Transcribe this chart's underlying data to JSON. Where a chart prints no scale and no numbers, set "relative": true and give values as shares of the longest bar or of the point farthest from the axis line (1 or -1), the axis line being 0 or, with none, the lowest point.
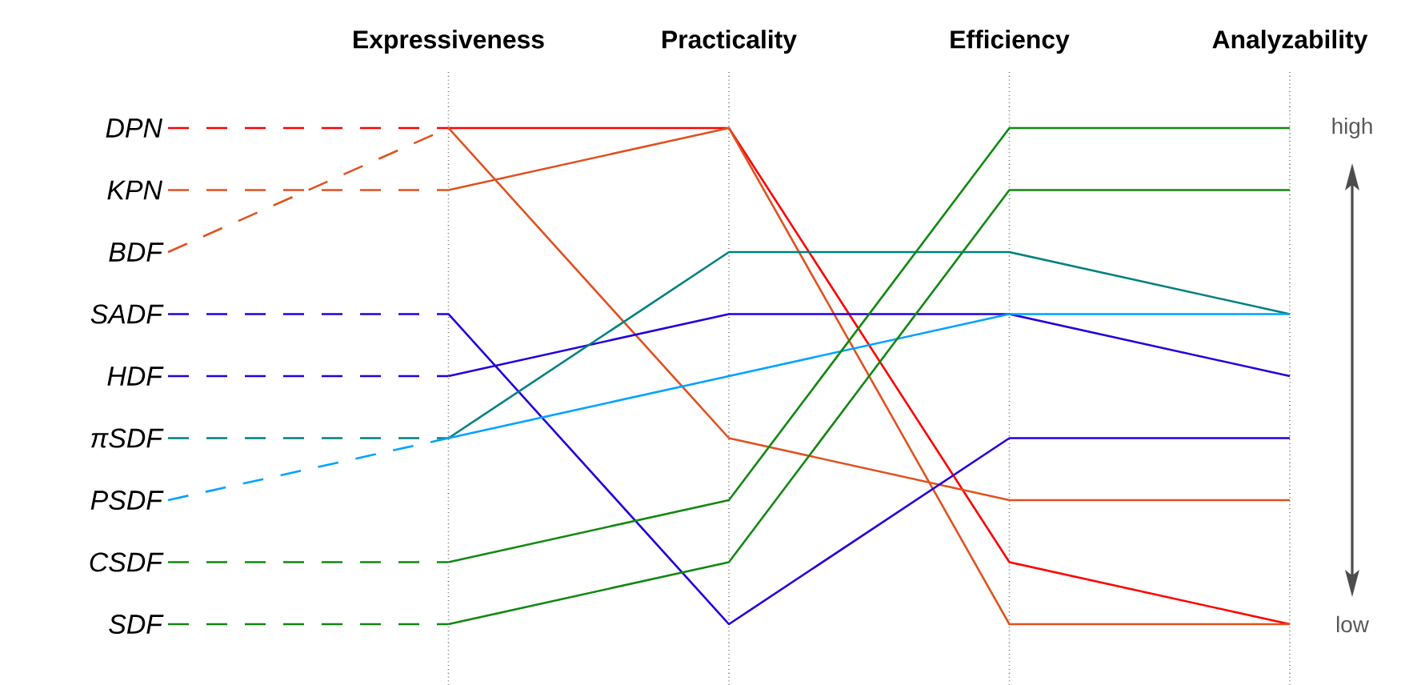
{
  "chart_data": {
    "type": "line",
    "relative": true,
    "grid": "x",
    "tick_labels": "x",
    "legend": false,
    "categories": [
      null,
      "Expressiveness",
      "Practicality",
      "Efficiency",
      "Analyzability"
    ],
    "series": [
      {
        "name": "DPN",
        "color": "#ff0000",
        "values": [
          1,
          1,
          1,
          0.125,
          0
        ]
      },
      {
        "name": "KPN",
        "color": "#e0521f",
        "values": [
          0.875,
          0.875,
          1,
          0,
          0
        ]
      },
      {
        "name": "BDF",
        "color": "#e0521f",
        "values": [
          0.75,
          1,
          0.375,
          0.25,
          0.25
        ]
      },
      {
        "name": "SADF",
        "color": "#2200dd",
        "values": [
          0.625,
          0.625,
          0,
          0.375,
          0.375
        ]
      },
      {
        "name": "HDF",
        "color": "#2200dd",
        "values": [
          0.5,
          0.5,
          0.625,
          0.625,
          0.5
        ]
      },
      {
        "name": "πSDF",
        "color": "#008080",
        "values": [
          0.375,
          0.375,
          0.75,
          0.75,
          0.625
        ]
      },
      {
        "name": "PSDF",
        "color": "#00a2ff",
        "values": [
          0.25,
          0.375,
          0.5,
          0.625,
          0.625
        ]
      },
      {
        "name": "CSDF",
        "color": "#118811",
        "values": [
          0.125,
          0.125,
          0.25,
          1,
          1
        ]
      },
      {
        "name": "SDF",
        "color": "#118811",
        "values": [
          0,
          0,
          0.125,
          0.875,
          0.875
        ]
      }
    ],
    "annotations": [
      "high",
      "low"
    ]
  }
}
